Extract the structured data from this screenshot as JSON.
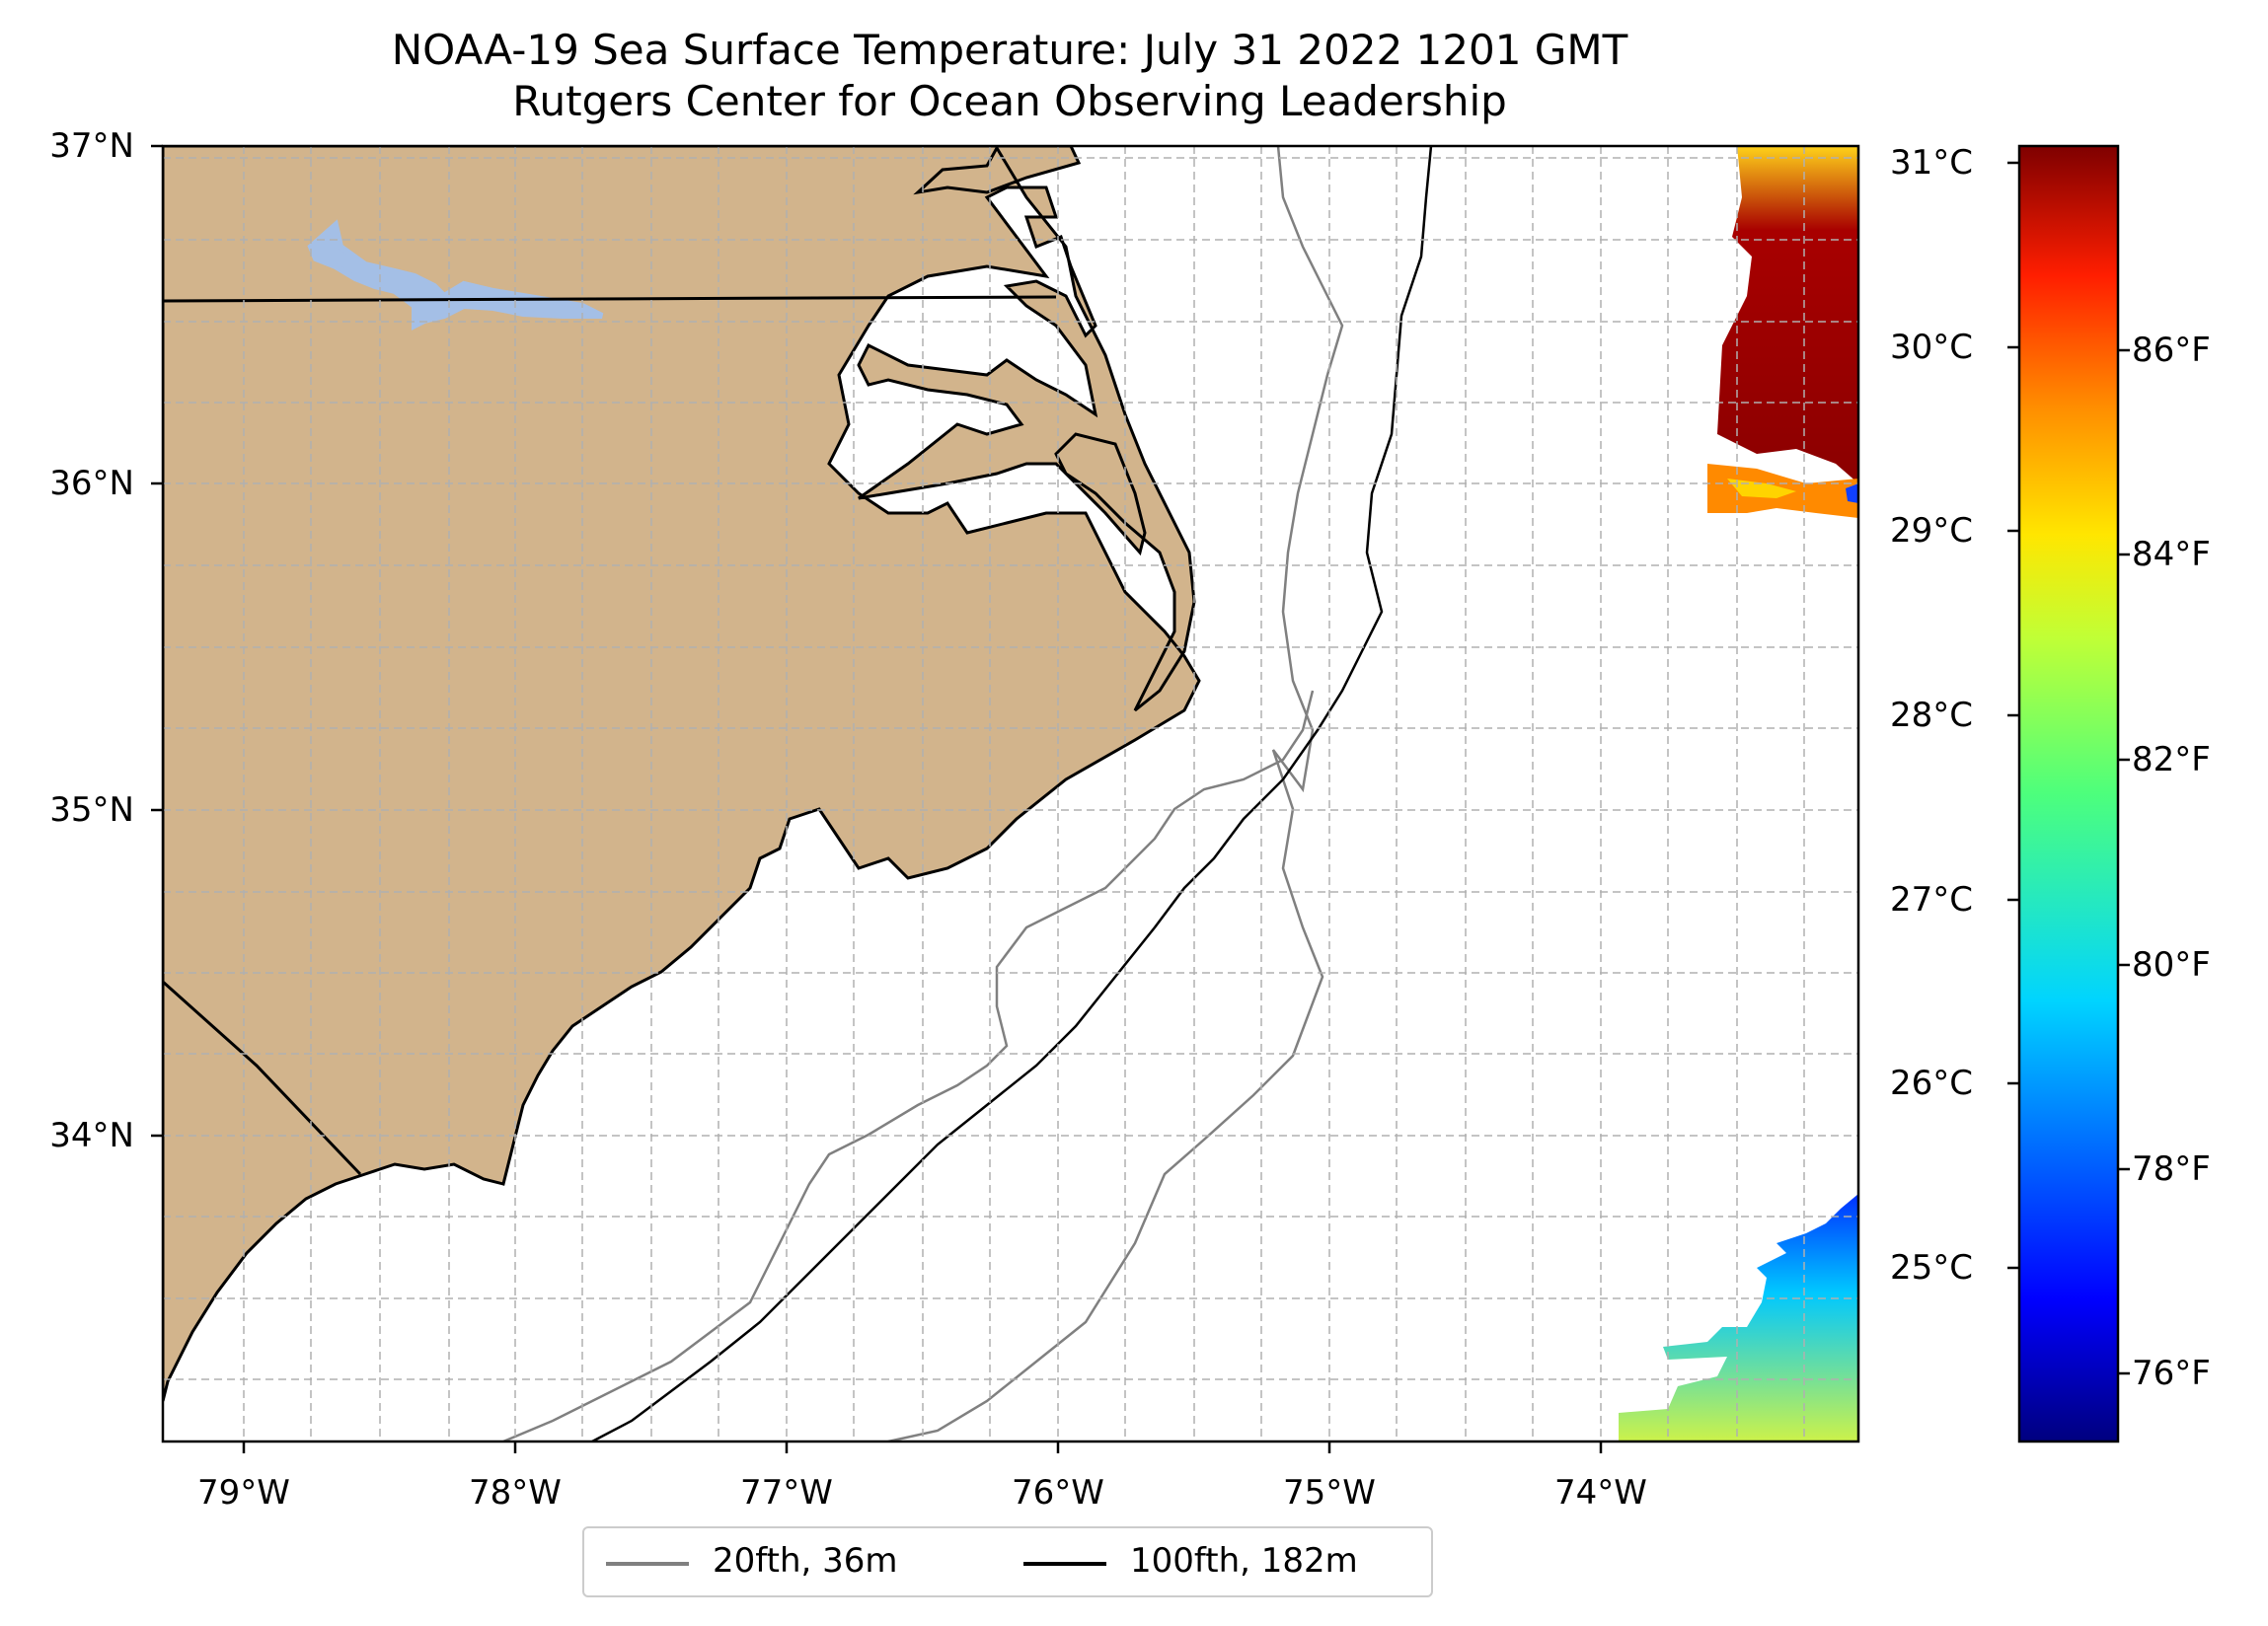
{
  "title": {
    "line1": "NOAA-19 Sea Surface Temperature: July 31 2022 1201 GMT",
    "line2": "Rutgers Center for Ocean Observing Leadership"
  },
  "map": {
    "lat_ticks": [
      "37°N",
      "36°N",
      "35°N",
      "34°N"
    ],
    "lon_ticks": [
      "79°W",
      "78°W",
      "77°W",
      "76°W",
      "75°W",
      "74°W"
    ],
    "colors": {
      "land": "#d2b48c",
      "water_body": "#a4bfe6",
      "grid": "#b0b0b0",
      "isobath_20": "#808080",
      "isobath_100": "#000000"
    }
  },
  "colorbar": {
    "celsius": [
      "31°C",
      "30°C",
      "29°C",
      "28°C",
      "27°C",
      "26°C",
      "25°C"
    ],
    "fahrenheit": [
      "86°F",
      "84°F",
      "82°F",
      "80°F",
      "78°F",
      "76°F"
    ],
    "colormap": "jet"
  },
  "legend": {
    "items": [
      {
        "label": "20fth, 36m",
        "color": "#808080"
      },
      {
        "label": "100fth, 182m",
        "color": "#000000"
      }
    ]
  }
}
